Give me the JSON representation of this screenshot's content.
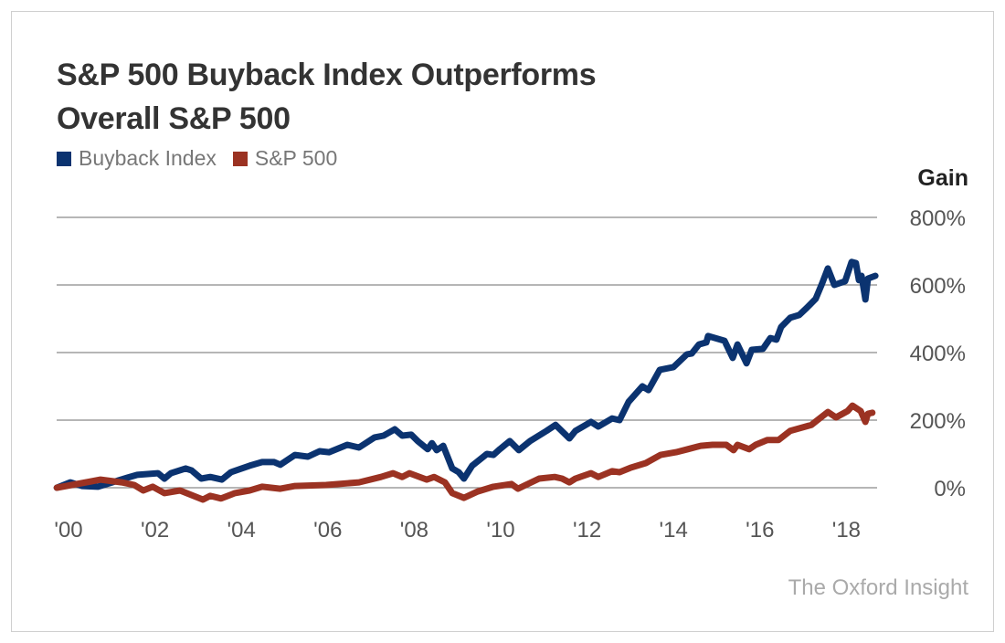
{
  "chart_data": {
    "type": "line",
    "title": "S&P 500 Buyback Index Outperforms Overall S&P 500",
    "title_lines": [
      "S&P 500 Buyback Index Outperforms",
      "Overall S&P 500"
    ],
    "ylabel": "Gain",
    "xlabel": "",
    "ylim": [
      0,
      800
    ],
    "xlim": [
      1999.7,
      2018.7
    ],
    "y_ticks": [
      0,
      200,
      400,
      600,
      800
    ],
    "y_tick_labels": [
      "0%",
      "200%",
      "400%",
      "600%",
      "800%"
    ],
    "x_ticks": [
      2000,
      2002,
      2004,
      2006,
      2008,
      2010,
      2012,
      2014,
      2016,
      2018
    ],
    "x_tick_labels": [
      "'00",
      "'02",
      "'04",
      "'06",
      "'08",
      "'10",
      "'12",
      "'14",
      "'16",
      "'18"
    ],
    "grid": "horizontal",
    "legend": "top-left",
    "series": [
      {
        "name": "Buyback Index",
        "color": "#0b3370",
        "points": [
          [
            1999.73,
            0
          ],
          [
            2000.04,
            16
          ],
          [
            2000.32,
            5
          ],
          [
            2000.68,
            3
          ],
          [
            2001.01,
            16
          ],
          [
            2001.37,
            30
          ],
          [
            2001.59,
            38
          ],
          [
            2002.07,
            43
          ],
          [
            2002.22,
            27
          ],
          [
            2002.37,
            43
          ],
          [
            2002.71,
            57
          ],
          [
            2002.85,
            51
          ],
          [
            2003.07,
            27
          ],
          [
            2003.28,
            32
          ],
          [
            2003.55,
            24
          ],
          [
            2003.76,
            46
          ],
          [
            2004.19,
            65
          ],
          [
            2004.48,
            76
          ],
          [
            2004.76,
            76
          ],
          [
            2004.9,
            68
          ],
          [
            2005.24,
            97
          ],
          [
            2005.54,
            92
          ],
          [
            2005.81,
            108
          ],
          [
            2006.03,
            105
          ],
          [
            2006.45,
            127
          ],
          [
            2006.72,
            119
          ],
          [
            2007.08,
            149
          ],
          [
            2007.29,
            154
          ],
          [
            2007.55,
            173
          ],
          [
            2007.72,
            154
          ],
          [
            2007.93,
            157
          ],
          [
            2008.08,
            138
          ],
          [
            2008.31,
            114
          ],
          [
            2008.41,
            132
          ],
          [
            2008.52,
            111
          ],
          [
            2008.67,
            124
          ],
          [
            2008.88,
            57
          ],
          [
            2009.03,
            46
          ],
          [
            2009.15,
            27
          ],
          [
            2009.34,
            65
          ],
          [
            2009.68,
            100
          ],
          [
            2009.83,
            97
          ],
          [
            2009.98,
            114
          ],
          [
            2010.21,
            138
          ],
          [
            2010.42,
            111
          ],
          [
            2010.68,
            138
          ],
          [
            2011.06,
            168
          ],
          [
            2011.27,
            186
          ],
          [
            2011.59,
            146
          ],
          [
            2011.73,
            168
          ],
          [
            2012.09,
            195
          ],
          [
            2012.26,
            181
          ],
          [
            2012.58,
            205
          ],
          [
            2012.75,
            200
          ],
          [
            2012.96,
            254
          ],
          [
            2013.28,
            300
          ],
          [
            2013.42,
            289
          ],
          [
            2013.68,
            349
          ],
          [
            2014.0,
            357
          ],
          [
            2014.31,
            395
          ],
          [
            2014.42,
            397
          ],
          [
            2014.59,
            424
          ],
          [
            2014.76,
            430
          ],
          [
            2014.8,
            449
          ],
          [
            2015.18,
            435
          ],
          [
            2015.37,
            384
          ],
          [
            2015.48,
            424
          ],
          [
            2015.69,
            368
          ],
          [
            2015.81,
            408
          ],
          [
            2016.07,
            411
          ],
          [
            2016.24,
            443
          ],
          [
            2016.38,
            438
          ],
          [
            2016.49,
            476
          ],
          [
            2016.7,
            503
          ],
          [
            2016.91,
            511
          ],
          [
            2017.08,
            532
          ],
          [
            2017.29,
            559
          ],
          [
            2017.44,
            605
          ],
          [
            2017.57,
            649
          ],
          [
            2017.72,
            600
          ],
          [
            2017.97,
            611
          ],
          [
            2018.12,
            668
          ],
          [
            2018.22,
            665
          ],
          [
            2018.29,
            614
          ],
          [
            2018.35,
            627
          ],
          [
            2018.44,
            557
          ],
          [
            2018.5,
            619
          ],
          [
            2018.67,
            627
          ]
        ]
      },
      {
        "name": "S&P 500",
        "color": "#9b3222",
        "points": [
          [
            1999.73,
            0
          ],
          [
            2000.53,
            19
          ],
          [
            2000.74,
            24
          ],
          [
            2001.23,
            16
          ],
          [
            2001.52,
            8
          ],
          [
            2001.73,
            -8
          ],
          [
            2001.95,
            3
          ],
          [
            2002.22,
            -16
          ],
          [
            2002.58,
            -8
          ],
          [
            2003.11,
            -35
          ],
          [
            2003.28,
            -24
          ],
          [
            2003.53,
            -32
          ],
          [
            2003.85,
            -16
          ],
          [
            2004.19,
            -8
          ],
          [
            2004.48,
            3
          ],
          [
            2004.9,
            -3
          ],
          [
            2005.24,
            5
          ],
          [
            2005.96,
            8
          ],
          [
            2006.72,
            16
          ],
          [
            2007.23,
            32
          ],
          [
            2007.51,
            43
          ],
          [
            2007.72,
            32
          ],
          [
            2007.89,
            43
          ],
          [
            2008.29,
            24
          ],
          [
            2008.46,
            32
          ],
          [
            2008.71,
            16
          ],
          [
            2008.88,
            -16
          ],
          [
            2009.15,
            -30
          ],
          [
            2009.47,
            -11
          ],
          [
            2009.83,
            3
          ],
          [
            2010.25,
            11
          ],
          [
            2010.4,
            -3
          ],
          [
            2010.53,
            5
          ],
          [
            2010.89,
            27
          ],
          [
            2011.25,
            32
          ],
          [
            2011.42,
            27
          ],
          [
            2011.59,
            16
          ],
          [
            2011.73,
            27
          ],
          [
            2012.09,
            43
          ],
          [
            2012.26,
            32
          ],
          [
            2012.58,
            49
          ],
          [
            2012.75,
            46
          ],
          [
            2013.0,
            59
          ],
          [
            2013.36,
            73
          ],
          [
            2013.7,
            97
          ],
          [
            2014.06,
            105
          ],
          [
            2014.33,
            114
          ],
          [
            2014.63,
            124
          ],
          [
            2014.9,
            127
          ],
          [
            2015.22,
            127
          ],
          [
            2015.39,
            111
          ],
          [
            2015.48,
            127
          ],
          [
            2015.75,
            114
          ],
          [
            2015.9,
            127
          ],
          [
            2016.17,
            141
          ],
          [
            2016.43,
            141
          ],
          [
            2016.7,
            168
          ],
          [
            2017.19,
            186
          ],
          [
            2017.38,
            205
          ],
          [
            2017.57,
            224
          ],
          [
            2017.76,
            208
          ],
          [
            2018.03,
            227
          ],
          [
            2018.14,
            243
          ],
          [
            2018.33,
            227
          ],
          [
            2018.44,
            195
          ],
          [
            2018.5,
            219
          ],
          [
            2018.6,
            222
          ]
        ]
      }
    ]
  },
  "credit": "The Oxford Insight"
}
